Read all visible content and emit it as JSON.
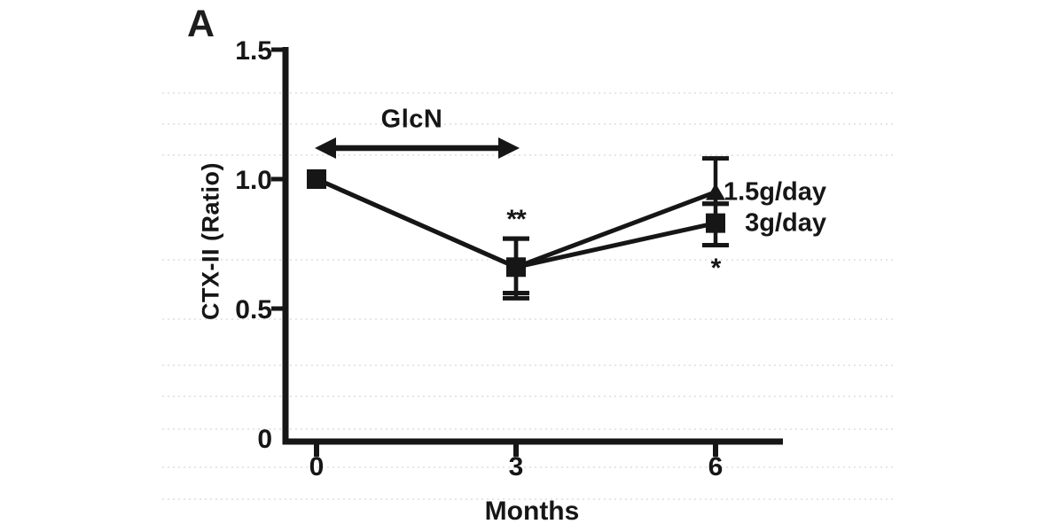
{
  "figure": {
    "panel_label": "A",
    "background_color": "#ffffff",
    "ink_color": "#161616"
  },
  "chart_data": {
    "type": "line",
    "title": "",
    "xlabel": "Months",
    "ylabel": "CTX-II (Ratio)",
    "x_ticks": [
      0,
      3,
      6
    ],
    "x_tick_labels": [
      "0",
      "3",
      "6"
    ],
    "y_ticks": [
      0,
      0.5,
      1.0,
      1.5
    ],
    "y_tick_labels": [
      "0",
      "0.5",
      "1.0",
      "1.5"
    ],
    "xlim": [
      -0.5,
      7.0
    ],
    "ylim": [
      0,
      1.5
    ],
    "grid": false,
    "legend_position": "right of month-6 data points",
    "series": [
      {
        "name": "1.5g/day",
        "marker": "triangle",
        "x": [
          0,
          3,
          6
        ],
        "y": [
          1.0,
          0.66,
          0.95
        ],
        "err_high": [
          0,
          0.11,
          0.13
        ],
        "err_low": [
          0,
          0.1,
          0.045
        ]
      },
      {
        "name": "3g/day",
        "marker": "square",
        "x": [
          0,
          3,
          6
        ],
        "y": [
          1.0,
          0.66,
          0.83
        ],
        "err_high": [
          0,
          0.11,
          0.075
        ],
        "err_low": [
          0,
          0.12,
          0.085
        ]
      }
    ],
    "annotations": [
      {
        "text": "**",
        "x": 3,
        "y": 0.86
      },
      {
        "text": "*",
        "x": 6,
        "y": 0.67
      }
    ],
    "treatment_arrow": {
      "label": "GlcN",
      "x_start": 0,
      "x_end": 3,
      "y": 1.12,
      "label_y": 1.23
    }
  }
}
